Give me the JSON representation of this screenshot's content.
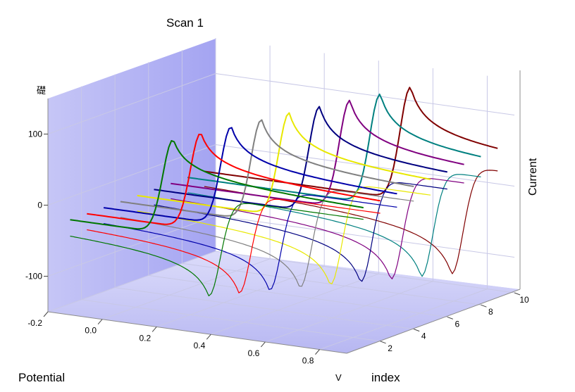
{
  "chart_data": {
    "type": "line",
    "projection": "3d",
    "title": "Scan 1",
    "xlabel": "Potential",
    "xunit": "V",
    "ylabel": "index",
    "zlabel": "Current",
    "zunit": "礎",
    "xlim": [
      -0.2,
      0.9
    ],
    "ylim": [
      0,
      10
    ],
    "zlim": [
      -150,
      150
    ],
    "x_ticks": [
      "-0.2",
      "0.0",
      "0.2",
      "0.4",
      "0.6",
      "0.8"
    ],
    "y_ticks": [
      "2",
      "4",
      "6",
      "8",
      "10"
    ],
    "z_ticks": [
      "100",
      "0",
      "-100"
    ],
    "grid": true,
    "series": [
      {
        "index": 1,
        "color": "#007700",
        "anodic_peak": {
          "x": 0.2,
          "y": 105
        },
        "cathodic_peak": {
          "x": 0.33,
          "y": -108
        }
      },
      {
        "index": 2,
        "color": "#ff0000",
        "anodic_peak": {
          "x": 0.24,
          "y": 108
        },
        "cathodic_peak": {
          "x": 0.38,
          "y": -110
        }
      },
      {
        "index": 3,
        "color": "#0000aa",
        "anodic_peak": {
          "x": 0.29,
          "y": 111
        },
        "cathodic_peak": {
          "x": 0.43,
          "y": -112
        }
      },
      {
        "index": 4,
        "color": "#808080",
        "anodic_peak": {
          "x": 0.34,
          "y": 115
        },
        "cathodic_peak": {
          "x": 0.48,
          "y": -114
        }
      },
      {
        "index": 5,
        "color": "#e8e800",
        "anodic_peak": {
          "x": 0.38,
          "y": 118
        },
        "cathodic_peak": {
          "x": 0.53,
          "y": -116
        }
      },
      {
        "index": 6,
        "color": "#000080",
        "anodic_peak": {
          "x": 0.43,
          "y": 121
        },
        "cathodic_peak": {
          "x": 0.58,
          "y": -118
        }
      },
      {
        "index": 7,
        "color": "#800080",
        "anodic_peak": {
          "x": 0.48,
          "y": 124
        },
        "cathodic_peak": {
          "x": 0.63,
          "y": -120
        }
      },
      {
        "index": 8,
        "color": "#008080",
        "anodic_peak": {
          "x": 0.53,
          "y": 127
        },
        "cathodic_peak": {
          "x": 0.68,
          "y": -122
        }
      },
      {
        "index": 9,
        "color": "#800000",
        "anodic_peak": {
          "x": 0.58,
          "y": 131
        },
        "cathodic_peak": {
          "x": 0.73,
          "y": -124
        }
      }
    ]
  }
}
